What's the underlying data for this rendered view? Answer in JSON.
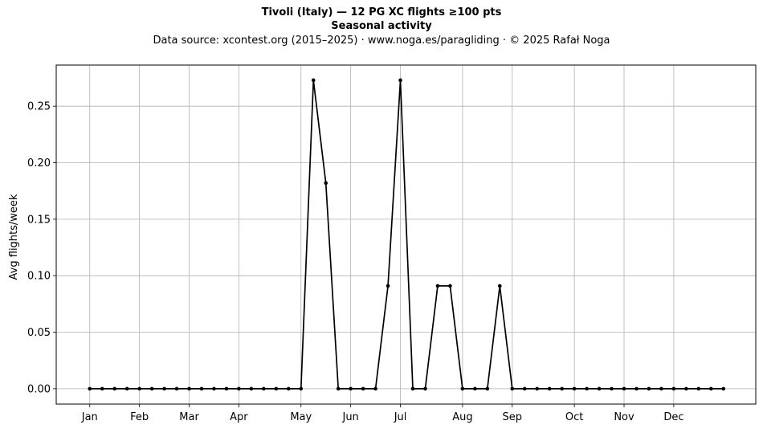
{
  "title_line1": "Tivoli (Italy)  —  12 PG XC flights ≥100 pts",
  "title_line2": "Seasonal activity",
  "title_line3": "Data source: xcontest.org (2015–2025)  ·  www.noga.es/paragliding  ·  © 2025 Rafał Noga",
  "chart_data": {
    "type": "line",
    "title": "Tivoli (Italy)  —  12 PG XC flights ≥100 pts",
    "subtitle": "Seasonal activity",
    "xlabel": "",
    "ylabel": "Avg flights/week",
    "x_unit": "week of year",
    "xlim": [
      -1.7,
      54.6
    ],
    "ylim": [
      -0.0136,
      0.2864
    ],
    "grid": true,
    "line_color": "#000000",
    "grid_color": "#b0b0b0",
    "x_ticks": [
      {
        "label": "Jan",
        "x": 1
      },
      {
        "label": "Feb",
        "x": 5
      },
      {
        "label": "Mar",
        "x": 9
      },
      {
        "label": "Apr",
        "x": 13
      },
      {
        "label": "May",
        "x": 18
      },
      {
        "label": "Jun",
        "x": 22
      },
      {
        "label": "Jul",
        "x": 26
      },
      {
        "label": "Aug",
        "x": 31
      },
      {
        "label": "Sep",
        "x": 35
      },
      {
        "label": "Oct",
        "x": 40
      },
      {
        "label": "Nov",
        "x": 44
      },
      {
        "label": "Dec",
        "x": 48
      }
    ],
    "y_ticks": [
      {
        "label": "0.00",
        "y": 0.0
      },
      {
        "label": "0.05",
        "y": 0.05
      },
      {
        "label": "0.10",
        "y": 0.1
      },
      {
        "label": "0.15",
        "y": 0.15
      },
      {
        "label": "0.20",
        "y": 0.2
      },
      {
        "label": "0.25",
        "y": 0.25
      }
    ],
    "x": [
      1,
      2,
      3,
      4,
      5,
      6,
      7,
      8,
      9,
      10,
      11,
      12,
      13,
      14,
      15,
      16,
      17,
      18,
      19,
      20,
      21,
      22,
      23,
      24,
      25,
      26,
      27,
      28,
      29,
      30,
      31,
      32,
      33,
      34,
      35,
      36,
      37,
      38,
      39,
      40,
      41,
      42,
      43,
      44,
      45,
      46,
      47,
      48,
      49,
      50,
      51,
      52
    ],
    "values": [
      0,
      0,
      0,
      0,
      0,
      0,
      0,
      0,
      0,
      0,
      0,
      0,
      0,
      0,
      0,
      0,
      0,
      0,
      0.273,
      0.182,
      0,
      0,
      0,
      0,
      0.091,
      0.273,
      0,
      0,
      0.091,
      0.091,
      0,
      0,
      0,
      0.091,
      0,
      0,
      0,
      0,
      0,
      0,
      0,
      0,
      0,
      0,
      0,
      0,
      0,
      0,
      0,
      0,
      0,
      0
    ]
  }
}
